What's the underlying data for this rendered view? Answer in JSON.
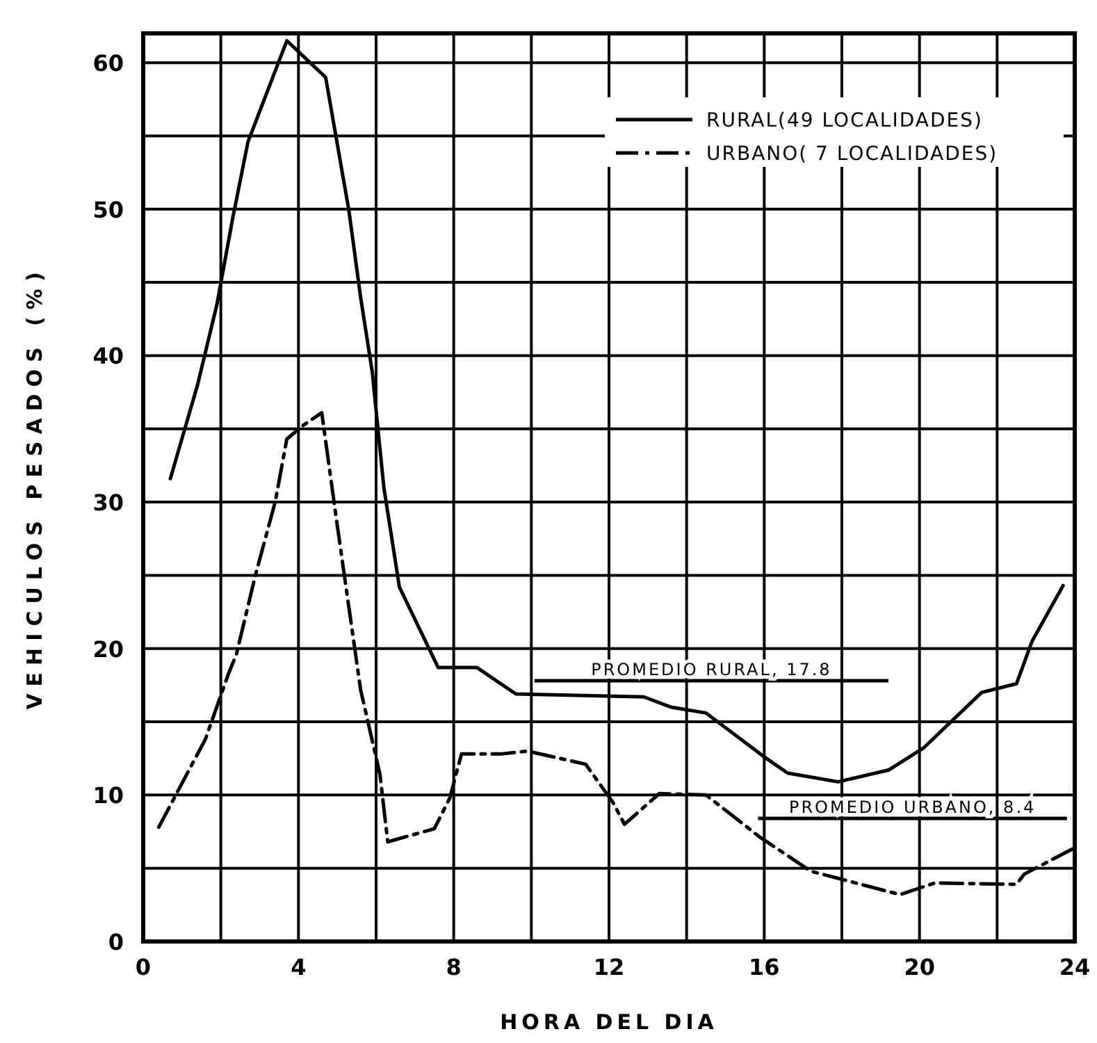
{
  "chart_data": {
    "type": "line",
    "xlabel": "HORA DEL DIA",
    "ylabel": "VEHICULOS PESADOS (%)",
    "xlim": [
      0,
      24
    ],
    "xticks": [
      0,
      4,
      8,
      12,
      16,
      20,
      24
    ],
    "ylim": [
      0,
      62
    ],
    "yticks": [
      0,
      10,
      20,
      30,
      40,
      50,
      60
    ],
    "grid": true,
    "legend": "top right",
    "marker": "none",
    "series": [
      {
        "name": "RURAL(49 LOCALIDADES)",
        "color": "#000000",
        "line_style": "solid",
        "x": [
          0.7,
          1.4,
          1.9,
          2.3,
          2.7,
          3.7,
          4.3,
          4.7,
          5.3,
          5.6,
          5.9,
          6.2,
          6.6,
          7.6,
          8.6,
          9.6,
          12.9,
          13.6,
          14.5,
          16.0,
          16.6,
          17.9,
          19.2,
          20.1,
          21.6,
          22.5,
          22.9,
          23.7
        ],
        "values": [
          31.6,
          38,
          43.5,
          49.3,
          54.6,
          61.5,
          60,
          59,
          49.9,
          44,
          38.9,
          31,
          24.2,
          18.7,
          18.7,
          16.9,
          16.7,
          16,
          15.6,
          12.6,
          11.5,
          10.9,
          11.7,
          13.2,
          17,
          17.6,
          20.5,
          24.3
        ]
      },
      {
        "name": "URBANO( 7 LOCALIDADES)",
        "color": "#000000",
        "line_style": "dashed",
        "x": [
          0.4,
          1.6,
          2.2,
          2.4,
          2.9,
          3.4,
          3.7,
          4.1,
          4.6,
          5.0,
          5.6,
          6.1,
          6.3,
          7.5,
          7.9,
          8.2,
          9.2,
          9.9,
          11.4,
          12.1,
          12.4,
          13.3,
          14.5,
          15.9,
          17.2,
          19.5,
          20.4,
          22.5,
          22.7,
          24
        ],
        "values": [
          7.8,
          13.8,
          18.3,
          19.6,
          25.1,
          30,
          34.3,
          35.2,
          36.1,
          28.4,
          17.2,
          11.4,
          6.8,
          7.7,
          9.8,
          12.8,
          12.8,
          13,
          12.1,
          9.5,
          8,
          10.1,
          10,
          7.1,
          4.8,
          3.2,
          4,
          3.9,
          4.6,
          6.4
        ]
      }
    ],
    "ref_lines": [
      {
        "axis": "y",
        "value": 17.8,
        "label": "PROMEDIO RURAL, 17.8",
        "color": "#000000"
      },
      {
        "axis": "y",
        "value": 8.4,
        "label": "PROMEDIO URBANO, 8.4",
        "color": "#000000"
      }
    ]
  }
}
